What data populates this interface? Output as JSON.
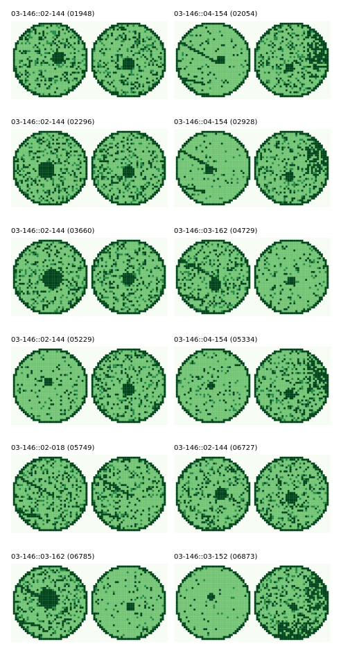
{
  "figure": {
    "panels": [
      {
        "title": "03-146::02-144 (01948)"
      },
      {
        "title": "03-146::04-154 (02054)"
      },
      {
        "title": "03-146::02-144 (02296)"
      },
      {
        "title": "03-146::04-154 (02928)"
      },
      {
        "title": "03-146::02-144 (03660)"
      },
      {
        "title": "03-146::03-162 (04729)"
      },
      {
        "title": "03-146::02-144 (05229)"
      },
      {
        "title": "03-146::04-154 (05334)"
      },
      {
        "title": "03-146::02-018 (05749)"
      },
      {
        "title": "03-146::02-144 (06727)"
      },
      {
        "title": "03-146::03-162 (06785)"
      },
      {
        "title": "03-146::03-152 (06873)"
      }
    ],
    "colors": {
      "background": "#f7fcf5",
      "light": "#74c476",
      "mid": "#238b45",
      "dark": "#00441b"
    }
  }
}
